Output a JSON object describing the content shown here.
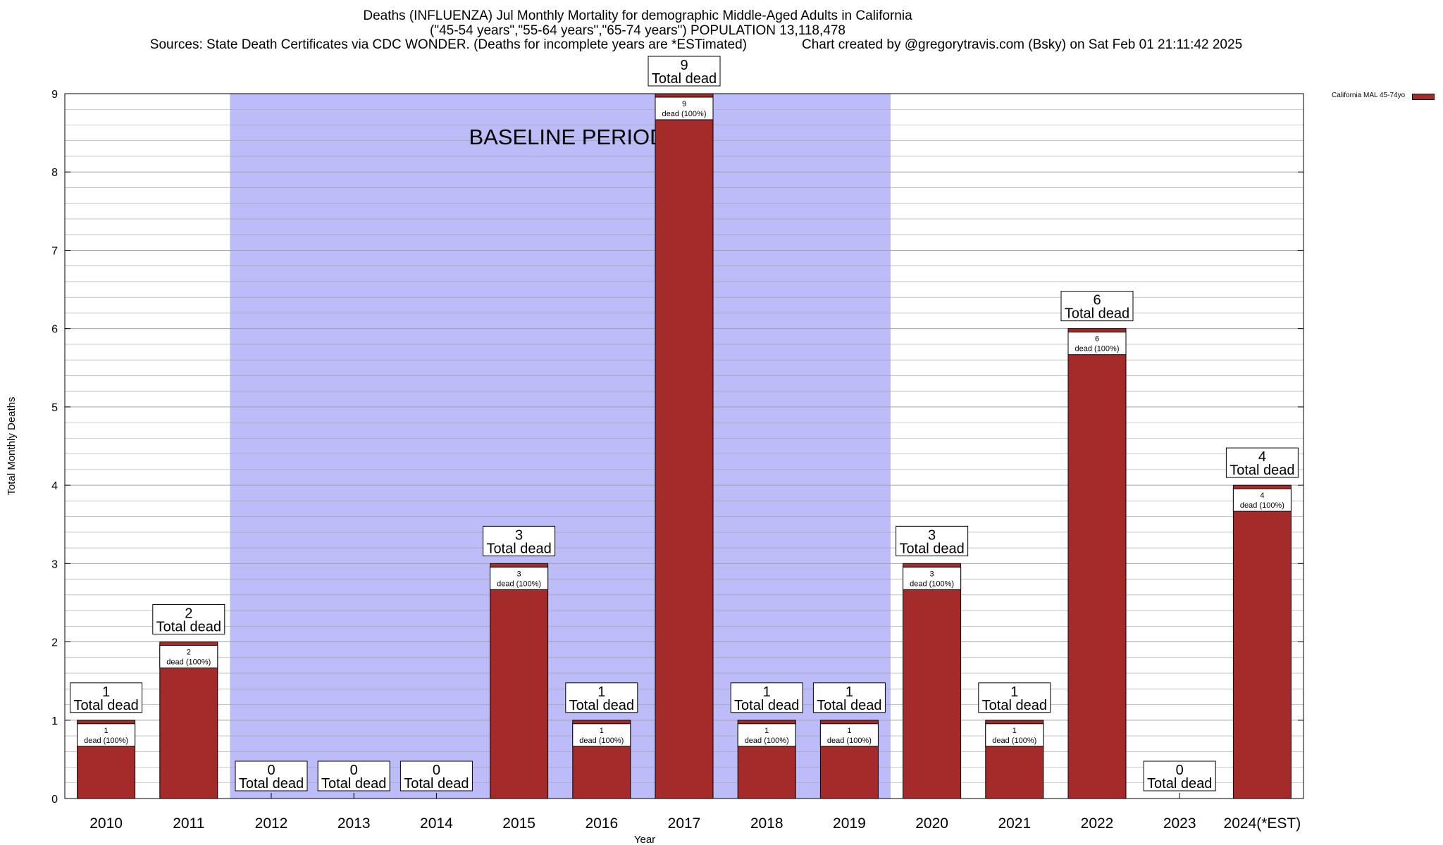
{
  "chart_data": {
    "type": "bar",
    "title": "Deaths (INFLUENZA) Jul Monthly Mortality for demographic Middle-Aged Adults in California",
    "subtitle": "(\"45-54 years\",\"55-64 years\",\"65-74 years\") POPULATION 13,118,478",
    "sources": "Sources: State Death Certificates via CDC WONDER. (Deaths for incomplete years are *ESTimated)",
    "credit": "Chart created by @gregorytravis.com (Bsky) on Sat Feb 01 21:11:42 2025",
    "xlabel": "Year",
    "ylabel": "Total Monthly Deaths",
    "categories": [
      "2010",
      "2011",
      "2012",
      "2013",
      "2014",
      "2015",
      "2016",
      "2017",
      "2018",
      "2019",
      "2020",
      "2021",
      "2022",
      "2023",
      "2024(*EST)"
    ],
    "series": [
      {
        "name": "California MAL 45-74yo",
        "values": [
          1,
          2,
          0,
          0,
          0,
          3,
          1,
          9,
          1,
          1,
          3,
          1,
          6,
          0,
          4
        ]
      }
    ],
    "ylim": [
      0,
      9
    ],
    "yticks": [
      0,
      1,
      2,
      3,
      4,
      5,
      6,
      7,
      8,
      9
    ],
    "grid": true,
    "legend_position": "top-right",
    "baseline": {
      "label": "BASELINE PERIOD",
      "from": "2012",
      "to": "2019"
    },
    "total_label": "Total dead",
    "inner_label_suffix": "dead (100%)",
    "colors": {
      "bar": "#a52a2a",
      "baseline": "#bcbcf8",
      "grid": "#a0a0a0"
    }
  }
}
